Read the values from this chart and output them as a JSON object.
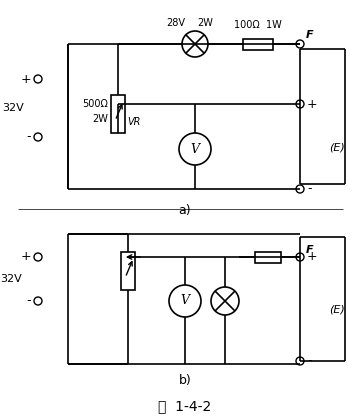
{
  "fig_width": 3.61,
  "fig_height": 4.19,
  "dpi": 100,
  "bg_color": "#ffffff",
  "line_color": "#000000",
  "title": "图  1-4-2",
  "label_a": "a)",
  "label_b": "b)",
  "font_size_label": 9,
  "font_size_title": 10,
  "font_size_small": 7,
  "font_size_med": 8
}
